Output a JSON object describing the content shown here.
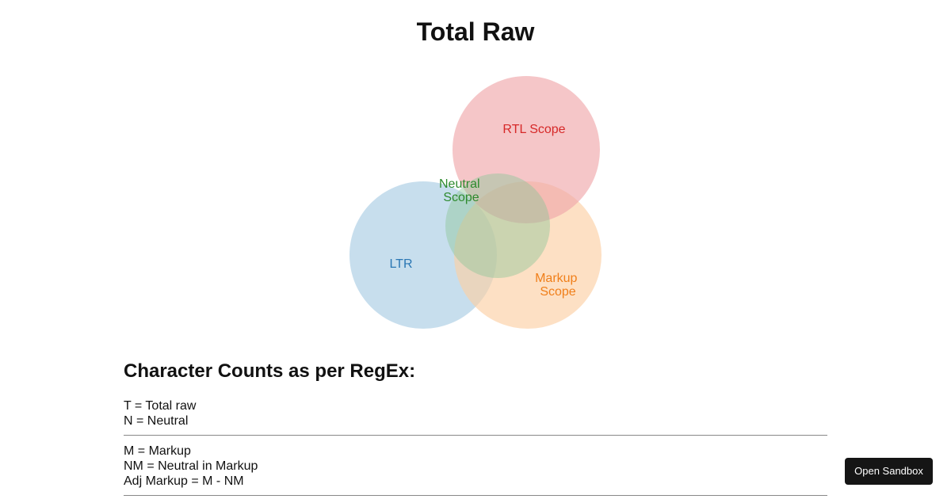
{
  "page": {
    "title": "Total Raw"
  },
  "venn": {
    "sets": [
      {
        "id": "ltr",
        "label_lines": [
          "LTR"
        ],
        "color": "#a9cce3",
        "text_color": "#2a77b4"
      },
      {
        "id": "rtl",
        "label_lines": [
          "RTL Scope"
        ],
        "color": "#f0a8ab",
        "text_color": "#d62828"
      },
      {
        "id": "markup",
        "label_lines": [
          "Markup",
          "Scope"
        ],
        "color": "#fcd0a4",
        "text_color": "#f07f1a"
      },
      {
        "id": "neutral",
        "label_lines": [
          "Neutral",
          "Scope"
        ],
        "color": "#8ec69a",
        "text_color": "#2d8a2d"
      }
    ]
  },
  "counts": {
    "heading": "Character Counts as per RegEx:",
    "groups": [
      {
        "lines": [
          "T = Total raw",
          "N = Neutral"
        ]
      },
      {
        "lines": [
          "M = Markup",
          "NM = Neutral in Markup",
          "Adj Markup = M - NM"
        ]
      }
    ]
  },
  "actions": {
    "open_sandbox_label": "Open Sandbox"
  }
}
